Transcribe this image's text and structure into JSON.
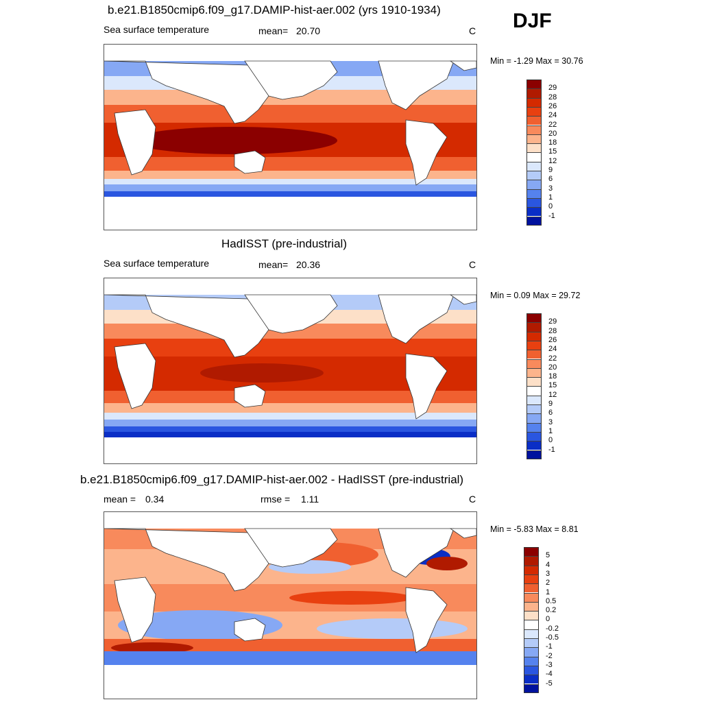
{
  "season_label": "DJF",
  "chart_data": [
    {
      "type": "heatmap",
      "title": "b.e21.B1850cmip6.f09_g17.DAMIP-hist-aer.002 (yrs 1910-1934)",
      "variable": "Sea surface temperature",
      "mean_label": "mean=",
      "mean": "20.70",
      "units": "C",
      "min_label": "Min =",
      "min": "-1.29",
      "max_label": "Max =",
      "max": "30.76",
      "colorbar": {
        "levels": [
          "29",
          "28",
          "26",
          "24",
          "22",
          "20",
          "18",
          "15",
          "12",
          "9",
          "6",
          "3",
          "1",
          "0",
          "-1"
        ],
        "colors": [
          "#8b0000",
          "#b01a00",
          "#d42a00",
          "#e84010",
          "#f06030",
          "#f88a5c",
          "#fcb48c",
          "#fde0c8",
          "#ffffff",
          "#dbe8fc",
          "#b4cbf8",
          "#86a8f4",
          "#5582ee",
          "#2a56e0",
          "#0a2ec6",
          "#00129e"
        ]
      }
    },
    {
      "type": "heatmap",
      "title": "HadISST (pre-industrial)",
      "variable": "Sea surface temperature",
      "mean_label": "mean=",
      "mean": "20.36",
      "units": "C",
      "min_label": "Min =",
      "min": "0.09",
      "max_label": "Max =",
      "max": "29.72",
      "colorbar": {
        "levels": [
          "29",
          "28",
          "26",
          "24",
          "22",
          "20",
          "18",
          "15",
          "12",
          "9",
          "6",
          "3",
          "1",
          "0",
          "-1"
        ],
        "colors": [
          "#8b0000",
          "#b01a00",
          "#d42a00",
          "#e84010",
          "#f06030",
          "#f88a5c",
          "#fcb48c",
          "#fde0c8",
          "#ffffff",
          "#dbe8fc",
          "#b4cbf8",
          "#86a8f4",
          "#5582ee",
          "#2a56e0",
          "#0a2ec6",
          "#00129e"
        ]
      }
    },
    {
      "type": "heatmap",
      "title": "b.e21.B1850cmip6.f09_g17.DAMIP-hist-aer.002 - HadISST (pre-industrial)",
      "left_stat_label": "mean =",
      "mean": "0.34",
      "rmse_label": "rmse =",
      "rmse": "1.11",
      "units": "C",
      "min_label": "Min =",
      "min": "-5.83",
      "max_label": "Max =",
      "max": "8.81",
      "colorbar": {
        "levels": [
          "5",
          "4",
          "3",
          "2",
          "1",
          "0.5",
          "0.2",
          "0",
          "-0.2",
          "-0.5",
          "-1",
          "-2",
          "-3",
          "-4",
          "-5"
        ],
        "colors": [
          "#8b0000",
          "#b01a00",
          "#d42a00",
          "#e84010",
          "#f06030",
          "#f88a5c",
          "#fcb48c",
          "#fde0c8",
          "#ffffff",
          "#dbe8fc",
          "#b4cbf8",
          "#86a8f4",
          "#5582ee",
          "#2a56e0",
          "#0a2ec6",
          "#00129e"
        ]
      }
    }
  ]
}
